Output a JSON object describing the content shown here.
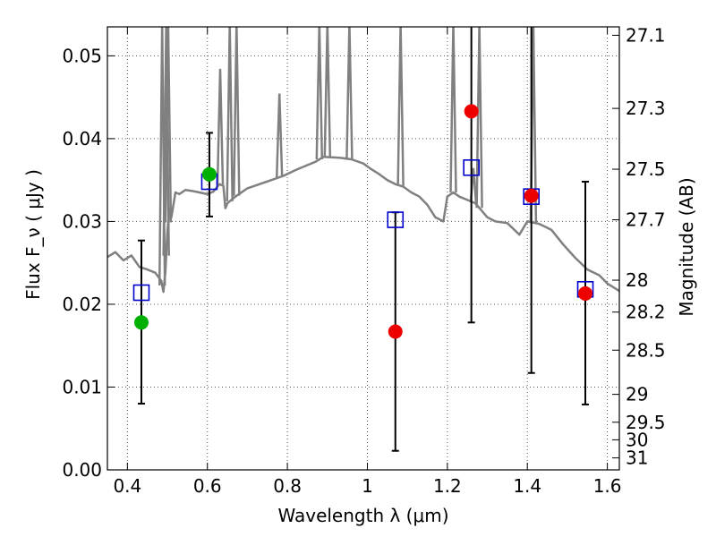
{
  "chart_data": {
    "type": "scatter",
    "xlabel": "Wavelength  λ (μm)",
    "ylabel": "Flux  F_ν  ( μJy )",
    "y2label": "Magnitude (AB)",
    "xlim": [
      0.35,
      1.63
    ],
    "ylim": [
      0.0,
      0.0535
    ],
    "grid": true,
    "legend": "none",
    "x_ticks": [
      {
        "value": 0.4,
        "label": "0.4"
      },
      {
        "value": 0.6,
        "label": "0.6"
      },
      {
        "value": 0.8,
        "label": "0.8"
      },
      {
        "value": 1.0,
        "label": "1"
      },
      {
        "value": 1.2,
        "label": "1.2"
      },
      {
        "value": 1.4,
        "label": "1.4"
      },
      {
        "value": 1.6,
        "label": "1.6"
      }
    ],
    "y_ticks": [
      {
        "value": 0.0,
        "label": "0.00"
      },
      {
        "value": 0.01,
        "label": "0.01"
      },
      {
        "value": 0.02,
        "label": "0.02"
      },
      {
        "value": 0.03,
        "label": "0.03"
      },
      {
        "value": 0.04,
        "label": "0.04"
      },
      {
        "value": 0.05,
        "label": "0.05"
      }
    ],
    "mag_ticks": [
      {
        "value": 27.1,
        "label": "27.1"
      },
      {
        "value": 27.3,
        "label": "27.3"
      },
      {
        "value": 27.5,
        "label": "27.5"
      },
      {
        "value": 27.7,
        "label": "27.7"
      },
      {
        "value": 28.0,
        "label": "28"
      },
      {
        "value": 28.2,
        "label": "28.2"
      },
      {
        "value": 28.5,
        "label": "28.5"
      },
      {
        "value": 29.0,
        "label": "29"
      },
      {
        "value": 29.5,
        "label": "29.5"
      },
      {
        "value": 30.0,
        "label": "30"
      },
      {
        "value": 31.0,
        "label": "31"
      }
    ],
    "colors": {
      "sed": "#808080",
      "model_box": "#0000cc",
      "green": "#00b000",
      "red": "#ee0000",
      "errorbar": "#000000",
      "grid": "#555555"
    },
    "series": [
      {
        "kind": "line",
        "color": "#808080",
        "points": [
          [
            0.35,
            0.0257
          ],
          [
            0.37,
            0.0263
          ],
          [
            0.39,
            0.0253
          ],
          [
            0.41,
            0.0259
          ],
          [
            0.43,
            0.0245
          ],
          [
            0.45,
            0.0242
          ],
          [
            0.47,
            0.0238
          ],
          [
            0.485,
            0.0228
          ],
          [
            0.49,
            0.0215
          ],
          [
            0.495,
            0.0239
          ],
          [
            0.5,
            0.0288
          ],
          [
            0.505,
            0.0315
          ],
          [
            0.51,
            0.0305
          ],
          [
            0.52,
            0.0335
          ],
          [
            0.53,
            0.0333
          ],
          [
            0.545,
            0.0338
          ],
          [
            0.56,
            0.0337
          ],
          [
            0.58,
            0.0335
          ],
          [
            0.6,
            0.0333
          ],
          [
            0.615,
            0.0336
          ],
          [
            0.63,
            0.0345
          ],
          [
            0.64,
            0.0343
          ],
          [
            0.645,
            0.0316
          ],
          [
            0.65,
            0.0322
          ],
          [
            0.67,
            0.033
          ],
          [
            0.7,
            0.034
          ],
          [
            0.73,
            0.0345
          ],
          [
            0.76,
            0.035
          ],
          [
            0.79,
            0.0355
          ],
          [
            0.82,
            0.0362
          ],
          [
            0.85,
            0.0368
          ],
          [
            0.87,
            0.0372
          ],
          [
            0.89,
            0.0378
          ],
          [
            0.93,
            0.0377
          ],
          [
            0.96,
            0.0375
          ],
          [
            0.99,
            0.037
          ],
          [
            1.01,
            0.0363
          ],
          [
            1.03,
            0.0357
          ],
          [
            1.05,
            0.035
          ],
          [
            1.07,
            0.0345
          ],
          [
            1.09,
            0.0342
          ],
          [
            1.11,
            0.0335
          ],
          [
            1.13,
            0.033
          ],
          [
            1.15,
            0.032
          ],
          [
            1.17,
            0.0305
          ],
          [
            1.19,
            0.03
          ],
          [
            1.2,
            0.033
          ],
          [
            1.215,
            0.0335
          ],
          [
            1.23,
            0.033
          ],
          [
            1.25,
            0.0326
          ],
          [
            1.27,
            0.0322
          ],
          [
            1.3,
            0.0305
          ],
          [
            1.32,
            0.03
          ],
          [
            1.35,
            0.0298
          ],
          [
            1.38,
            0.0284
          ],
          [
            1.4,
            0.03
          ],
          [
            1.43,
            0.0297
          ],
          [
            1.46,
            0.029
          ],
          [
            1.49,
            0.0272
          ],
          [
            1.52,
            0.0256
          ],
          [
            1.55,
            0.0242
          ],
          [
            1.58,
            0.0235
          ],
          [
            1.6,
            0.0225
          ],
          [
            1.63,
            0.0216
          ]
        ]
      },
      {
        "kind": "emission_lines",
        "color": "#808080",
        "lines": [
          {
            "x": 0.487,
            "peak": 0.0535
          },
          {
            "x": 0.497,
            "peak": 0.0535
          },
          {
            "x": 0.502,
            "peak": 0.0535
          },
          {
            "x": 0.656,
            "peak": 0.0535
          },
          {
            "x": 0.673,
            "peak": 0.0535
          },
          {
            "x": 0.632,
            "peak": 0.048
          },
          {
            "x": 0.88,
            "peak": 0.0535
          },
          {
            "x": 0.9,
            "peak": 0.0535
          },
          {
            "x": 0.955,
            "peak": 0.0535
          },
          {
            "x": 0.78,
            "peak": 0.045
          },
          {
            "x": 1.083,
            "peak": 0.0535
          },
          {
            "x": 1.215,
            "peak": 0.0535
          },
          {
            "x": 1.28,
            "peak": 0.0535
          },
          {
            "x": 1.265,
            "peak": 0.036
          },
          {
            "x": 1.415,
            "peak": 0.0535
          }
        ]
      },
      {
        "kind": "model_boxes",
        "color": "#0000cc",
        "points": [
          {
            "x": 0.435,
            "y": 0.0214
          },
          {
            "x": 0.605,
            "y": 0.0348
          },
          {
            "x": 1.07,
            "y": 0.0302
          },
          {
            "x": 1.26,
            "y": 0.0365
          },
          {
            "x": 1.41,
            "y": 0.033
          },
          {
            "x": 1.545,
            "y": 0.0218
          }
        ]
      },
      {
        "kind": "points",
        "color": "#00b000",
        "points": [
          {
            "x": 0.435,
            "y": 0.0178,
            "err_low": 0.008,
            "err_high": 0.0277
          },
          {
            "x": 0.605,
            "y": 0.0357,
            "err_low": 0.0306,
            "err_high": 0.0407
          }
        ]
      },
      {
        "kind": "points",
        "color": "#ee0000",
        "points": [
          {
            "x": 1.07,
            "y": 0.0167,
            "err_low": 0.0023,
            "err_high": 0.0311
          },
          {
            "x": 1.26,
            "y": 0.0433,
            "err_low": 0.0178,
            "err_high": 0.0535
          },
          {
            "x": 1.41,
            "y": 0.0331,
            "err_low": 0.0117,
            "err_high": 0.0535
          },
          {
            "x": 1.545,
            "y": 0.0213,
            "err_low": 0.0079,
            "err_high": 0.0348
          }
        ]
      }
    ]
  }
}
